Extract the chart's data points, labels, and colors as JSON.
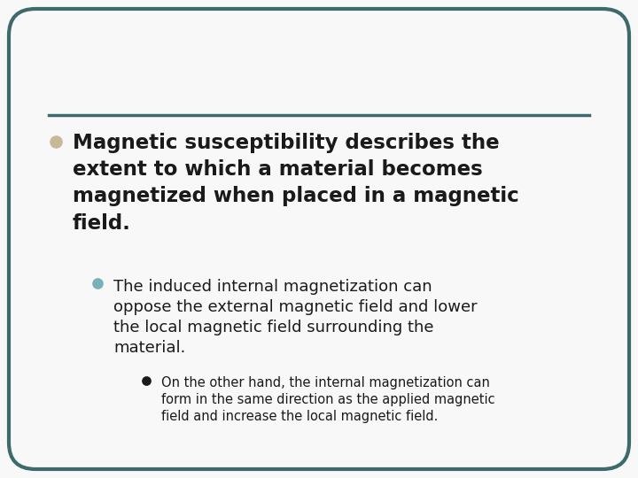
{
  "background_color": "#f8f8f8",
  "border_color": "#3d6b6b",
  "border_linewidth": 3.0,
  "divider_color": "#3d6b6b",
  "text_color": "#1a1a1a",
  "bullet1_color": "#c8b89a",
  "bullet2_color": "#7ab0b8",
  "bullet3_color": "#1a1a1a",
  "bullet1_text": "Magnetic susceptibility describes the\nextent to which a material becomes\nmagnetized when placed in a magnetic\nfield.",
  "bullet1_fontsize": 16.5,
  "bullet2_text": "The induced internal magnetization can\noppose the external magnetic field and lower\nthe local magnetic field surrounding the\nmaterial.",
  "bullet2_fontsize": 13.0,
  "bullet3_text": "On the other hand, the internal magnetization can\nform in the same direction as the applied magnetic\nfield and increase the local magnetic field.",
  "bullet3_fontsize": 10.5
}
